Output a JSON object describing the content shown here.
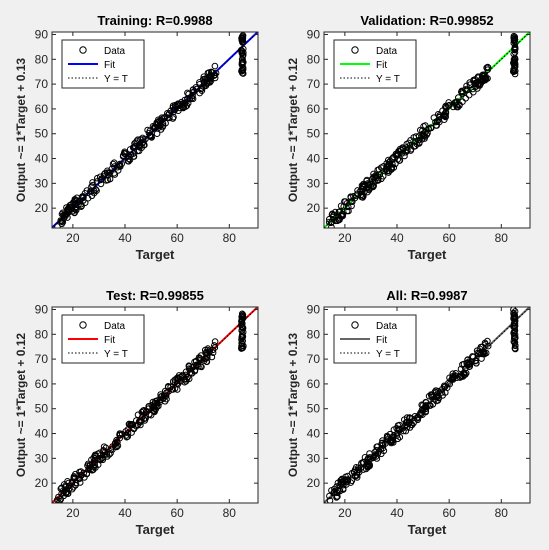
{
  "figure": {
    "background": "#f0f0f0",
    "axes_background": "#ffffff"
  },
  "chart_data": [
    {
      "type": "scatter",
      "title": "Training: R=0.9988",
      "xlabel": "Target",
      "ylabel": "Output ~= 1*Target + 0.13",
      "xlim": [
        12,
        91
      ],
      "ylim": [
        12,
        91
      ],
      "xticks": [
        20,
        40,
        60,
        80
      ],
      "yticks": [
        20,
        30,
        40,
        50,
        60,
        70,
        80,
        90
      ],
      "grid": false,
      "legend_position": "top-left",
      "legend": [
        "Data",
        "Fit",
        "Y = T"
      ],
      "fit": {
        "slope": 1,
        "intercept": 0.13,
        "color": "#0000ff"
      },
      "identity_line_style": "dotted",
      "data_color": "#000000",
      "target_range": [
        14,
        75
      ],
      "outlier_cluster": {
        "x": 85,
        "y_range": [
          74,
          90
        ]
      }
    },
    {
      "type": "scatter",
      "title": "Validation: R=0.99852",
      "xlabel": "Target",
      "ylabel": "Output ~= 1*Target + 0.12",
      "xlim": [
        12,
        91
      ],
      "ylim": [
        12,
        91
      ],
      "xticks": [
        20,
        40,
        60,
        80
      ],
      "yticks": [
        20,
        30,
        40,
        50,
        60,
        70,
        80,
        90
      ],
      "grid": false,
      "legend_position": "top-left",
      "legend": [
        "Data",
        "Fit",
        "Y = T"
      ],
      "fit": {
        "slope": 1,
        "intercept": 0.12,
        "color": "#00ff00"
      },
      "identity_line_style": "dotted",
      "data_color": "#000000",
      "target_range": [
        14,
        75
      ],
      "outlier_cluster": {
        "x": 85,
        "y_range": [
          74,
          90
        ]
      }
    },
    {
      "type": "scatter",
      "title": "Test: R=0.99855",
      "xlabel": "Target",
      "ylabel": "Output ~= 1*Target + 0.12",
      "xlim": [
        12,
        91
      ],
      "ylim": [
        12,
        91
      ],
      "xticks": [
        20,
        40,
        60,
        80
      ],
      "yticks": [
        20,
        30,
        40,
        50,
        60,
        70,
        80,
        90
      ],
      "grid": false,
      "legend_position": "top-left",
      "legend": [
        "Data",
        "Fit",
        "Y = T"
      ],
      "fit": {
        "slope": 1,
        "intercept": 0.12,
        "color": "#ff0000"
      },
      "identity_line_style": "dotted",
      "data_color": "#000000",
      "target_range": [
        14,
        75
      ],
      "outlier_cluster": {
        "x": 85,
        "y_range": [
          74,
          90
        ]
      }
    },
    {
      "type": "scatter",
      "title": "All: R=0.9987",
      "xlabel": "Target",
      "ylabel": "Output ~= 1*Target + 0.13",
      "xlim": [
        12,
        91
      ],
      "ylim": [
        12,
        91
      ],
      "xticks": [
        20,
        40,
        60,
        80
      ],
      "yticks": [
        20,
        30,
        40,
        50,
        60,
        70,
        80,
        90
      ],
      "grid": false,
      "legend_position": "top-left",
      "legend": [
        "Data",
        "Fit",
        "Y = T"
      ],
      "fit": {
        "slope": 1,
        "intercept": 0.13,
        "color": "#666666"
      },
      "identity_line_style": "dotted",
      "data_color": "#000000",
      "target_range": [
        14,
        75
      ],
      "outlier_cluster": {
        "x": 85,
        "y_range": [
          74,
          90
        ]
      }
    }
  ]
}
